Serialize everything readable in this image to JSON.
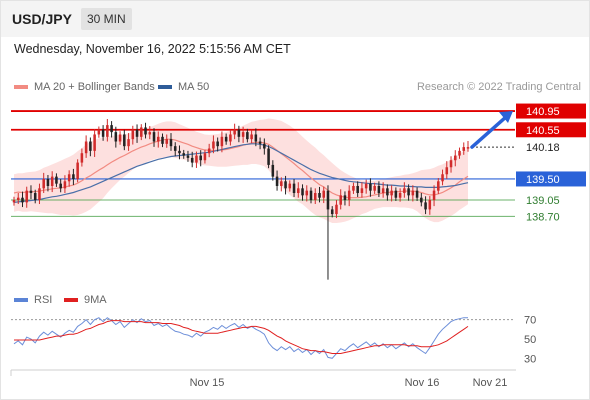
{
  "header": {
    "symbol": "USD/JPY",
    "timeframe": "30 MIN",
    "datetime": "Wednesday, November 16, 2022 5:15:56 AM CET"
  },
  "legend": {
    "ma20": {
      "label": "MA 20 + Bollinger Bands",
      "color": "#f28b82"
    },
    "ma50": {
      "label": "MA 50",
      "color": "#2e5c99"
    },
    "rsi": {
      "label": "RSI",
      "color": "#5b84d6"
    },
    "ma9": {
      "label": "9MA",
      "color": "#e02020"
    }
  },
  "credit": "Research © 2022 Trading Central",
  "chart_data": [
    {
      "type": "candlestick",
      "ylim": [
        137.3,
        141.25
      ],
      "current_price": {
        "value": 140.18,
        "label": "140.18"
      },
      "levels": [
        {
          "value": 140.95,
          "label": "140.95",
          "kind": "resistance",
          "color": "#e00000"
        },
        {
          "value": 140.55,
          "label": "140.55",
          "kind": "resistance",
          "color": "#e00000"
        },
        {
          "value": 139.5,
          "label": "139.50",
          "kind": "pivot",
          "color": "#2a62d8"
        },
        {
          "value": 139.05,
          "label": "139.05",
          "kind": "support",
          "color": "#3a9a3a"
        },
        {
          "value": 138.7,
          "label": "138.70",
          "kind": "support",
          "color": "#3a9a3a"
        }
      ],
      "x_ticks": [
        "Nov 15",
        "Nov 16",
        "Nov 21"
      ],
      "arrow": {
        "from": 140.18,
        "to": 140.95,
        "color": "#2a62d8"
      },
      "close": [
        139.05,
        139.1,
        139.0,
        139.25,
        139.2,
        139.05,
        139.3,
        139.5,
        139.35,
        139.55,
        139.4,
        139.3,
        139.45,
        139.6,
        139.5,
        139.85,
        140.05,
        140.3,
        140.1,
        140.45,
        140.55,
        140.4,
        140.65,
        140.5,
        140.3,
        140.45,
        140.2,
        140.35,
        140.55,
        140.4,
        140.6,
        140.45,
        140.5,
        140.3,
        140.4,
        140.25,
        140.35,
        140.2,
        140.1,
        140.05,
        140.0,
        139.95,
        139.85,
        140.0,
        139.9,
        140.05,
        140.15,
        140.3,
        140.2,
        140.4,
        140.3,
        140.45,
        140.55,
        140.4,
        140.5,
        140.35,
        140.45,
        140.3,
        140.25,
        140.15,
        139.8,
        139.55,
        139.35,
        139.45,
        139.3,
        139.4,
        139.2,
        139.3,
        139.15,
        139.25,
        139.05,
        139.2,
        139.1,
        139.25,
        138.85,
        138.75,
        138.95,
        139.15,
        139.05,
        139.25,
        139.35,
        139.2,
        139.3,
        139.4,
        139.25,
        139.35,
        139.2,
        139.3,
        139.15,
        139.25,
        139.1,
        139.2,
        139.3,
        139.15,
        139.25,
        139.1,
        139.0,
        138.85,
        139.05,
        139.25,
        139.45,
        139.6,
        139.75,
        139.9,
        140.0,
        140.1,
        140.18,
        140.18
      ],
      "ma20": [
        139.2,
        139.22,
        139.21,
        139.22,
        139.23,
        139.23,
        139.24,
        139.26,
        139.27,
        139.29,
        139.3,
        139.31,
        139.33,
        139.35,
        139.37,
        139.41,
        139.46,
        139.52,
        139.57,
        139.63,
        139.69,
        139.74,
        139.8,
        139.86,
        139.91,
        139.96,
        140.0,
        140.05,
        140.1,
        140.14,
        140.18,
        140.21,
        140.25,
        140.28,
        140.31,
        140.33,
        140.35,
        140.35,
        140.33,
        140.3,
        140.27,
        140.24,
        140.2,
        140.17,
        140.14,
        140.12,
        140.11,
        140.11,
        140.11,
        140.12,
        140.13,
        140.15,
        140.17,
        140.19,
        140.22,
        140.24,
        140.27,
        140.28,
        140.28,
        140.27,
        140.24,
        140.18,
        140.11,
        140.04,
        139.97,
        139.9,
        139.83,
        139.75,
        139.68,
        139.6,
        139.52,
        139.45,
        139.38,
        139.33,
        139.26,
        139.2,
        139.16,
        139.13,
        139.11,
        139.1,
        139.1,
        139.1,
        139.11,
        139.12,
        139.14,
        139.16,
        139.18,
        139.2,
        139.21,
        139.22,
        139.23,
        139.23,
        139.24,
        139.24,
        139.24,
        139.23,
        139.21,
        139.18,
        139.16,
        139.16,
        139.18,
        139.21,
        139.26,
        139.31,
        139.37,
        139.44,
        139.5,
        139.56
      ],
      "ma50": [
        139.0,
        139.01,
        139.02,
        139.03,
        139.04,
        139.05,
        139.06,
        139.08,
        139.1,
        139.12,
        139.13,
        139.15,
        139.17,
        139.19,
        139.21,
        139.24,
        139.27,
        139.3,
        139.33,
        139.37,
        139.41,
        139.45,
        139.49,
        139.53,
        139.57,
        139.61,
        139.65,
        139.69,
        139.73,
        139.77,
        139.8,
        139.83,
        139.86,
        139.89,
        139.92,
        139.94,
        139.96,
        139.98,
        139.99,
        140.0,
        140.01,
        140.02,
        140.03,
        140.04,
        140.05,
        140.06,
        140.07,
        140.09,
        140.11,
        140.13,
        140.15,
        140.17,
        140.19,
        140.21,
        140.23,
        140.24,
        140.25,
        140.25,
        140.24,
        140.22,
        140.19,
        140.15,
        140.1,
        140.05,
        140.0,
        139.95,
        139.9,
        139.85,
        139.8,
        139.75,
        139.7,
        139.66,
        139.62,
        139.59,
        139.56,
        139.53,
        139.51,
        139.49,
        139.47,
        139.45,
        139.44,
        139.43,
        139.42,
        139.41,
        139.4,
        139.4,
        139.39,
        139.38,
        139.37,
        139.37,
        139.36,
        139.35,
        139.35,
        139.34,
        139.34,
        139.33,
        139.33,
        139.32,
        139.32,
        139.32,
        139.32,
        139.33,
        139.34,
        139.35,
        139.36,
        139.38,
        139.4,
        139.42
      ],
      "band_width": [
        0.4,
        0.4,
        0.41,
        0.42,
        0.42,
        0.43,
        0.45,
        0.48,
        0.5,
        0.52,
        0.55,
        0.58,
        0.6,
        0.62,
        0.65,
        0.68,
        0.7,
        0.72,
        0.72,
        0.7,
        0.68,
        0.65,
        0.6,
        0.56,
        0.52,
        0.48,
        0.45,
        0.42,
        0.4,
        0.38,
        0.37,
        0.36,
        0.36,
        0.36,
        0.37,
        0.38,
        0.38,
        0.38,
        0.38,
        0.37,
        0.36,
        0.35,
        0.35,
        0.34,
        0.34,
        0.33,
        0.33,
        0.34,
        0.35,
        0.36,
        0.37,
        0.38,
        0.39,
        0.4,
        0.42,
        0.44,
        0.45,
        0.46,
        0.48,
        0.5,
        0.55,
        0.6,
        0.65,
        0.7,
        0.72,
        0.74,
        0.74,
        0.74,
        0.72,
        0.72,
        0.72,
        0.72,
        0.7,
        0.68,
        0.66,
        0.64,
        0.6,
        0.56,
        0.52,
        0.48,
        0.44,
        0.4,
        0.36,
        0.34,
        0.32,
        0.3,
        0.3,
        0.3,
        0.31,
        0.32,
        0.33,
        0.34,
        0.35,
        0.36,
        0.38,
        0.42,
        0.48,
        0.52,
        0.55,
        0.58,
        0.6,
        0.6,
        0.6,
        0.6,
        0.6,
        0.6,
        0.6,
        0.6
      ]
    },
    {
      "type": "line",
      "ylim": [
        20,
        80
      ],
      "y_ticks": [
        70,
        50,
        30
      ],
      "reference_line": 70,
      "rsi": [
        45,
        48,
        44,
        52,
        50,
        46,
        53,
        57,
        54,
        58,
        55,
        52,
        56,
        59,
        57,
        63,
        66,
        70,
        65,
        70,
        72,
        68,
        72,
        69,
        65,
        68,
        62,
        66,
        70,
        67,
        71,
        68,
        69,
        64,
        66,
        63,
        65,
        61,
        58,
        57,
        55,
        54,
        52,
        56,
        53,
        57,
        59,
        62,
        60,
        64,
        61,
        64,
        66,
        62,
        65,
        61,
        63,
        60,
        58,
        55,
        46,
        41,
        38,
        42,
        39,
        42,
        37,
        40,
        36,
        39,
        34,
        38,
        35,
        39,
        31,
        30,
        35,
        40,
        38,
        42,
        45,
        41,
        44,
        47,
        43,
        46,
        42,
        45,
        41,
        44,
        40,
        43,
        46,
        42,
        45,
        41,
        38,
        35,
        41,
        48,
        55,
        60,
        64,
        68,
        70,
        71,
        72,
        72
      ],
      "ma9": [
        49,
        49,
        49,
        49,
        49,
        49,
        49,
        50,
        51,
        52,
        53,
        53,
        54,
        55,
        55,
        56,
        58,
        60,
        61,
        63,
        65,
        66,
        68,
        69,
        69,
        69,
        68,
        68,
        68,
        68,
        68,
        67,
        67,
        67,
        67,
        66,
        66,
        66,
        65,
        64,
        62,
        61,
        59,
        58,
        57,
        56,
        56,
        56,
        56,
        57,
        58,
        59,
        60,
        61,
        62,
        62,
        63,
        63,
        62,
        61,
        59,
        56,
        53,
        51,
        48,
        46,
        44,
        42,
        40,
        39,
        38,
        38,
        37,
        37,
        36,
        35,
        35,
        35,
        36,
        37,
        38,
        39,
        40,
        41,
        42,
        43,
        43,
        44,
        44,
        44,
        44,
        44,
        44,
        43,
        43,
        43,
        42,
        42,
        42,
        43,
        44,
        46,
        48,
        51,
        54,
        57,
        60,
        63
      ]
    }
  ]
}
